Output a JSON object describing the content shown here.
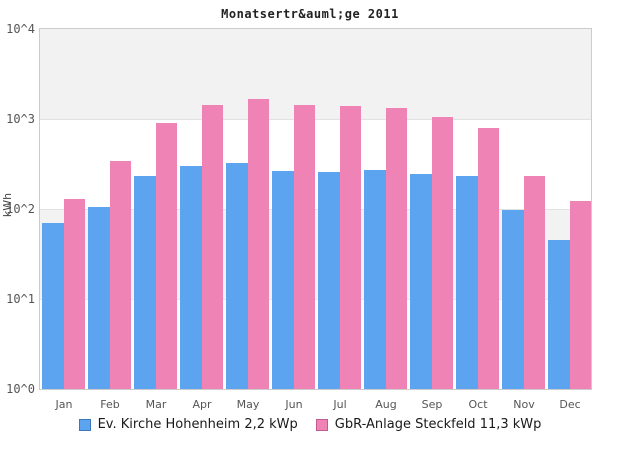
{
  "title": "Monatsertr&auml;ge 2011",
  "y_axis": {
    "label": "kWh",
    "ticks": [
      "10^4",
      "10^3",
      "10^2",
      "10^1",
      "10^0"
    ]
  },
  "colors": {
    "series1_fill": "#5ca4f0",
    "series1_border": "#3d77b8",
    "series2_fill": "#f083b6",
    "series2_border": "#c25a92",
    "band_gray": "#f2f2f2",
    "band_white": "#ffffff",
    "plot_border": "#cccccc"
  },
  "chart_data": {
    "type": "bar",
    "title": "Monatsertr&auml;ge 2011",
    "categories": [
      "Jan",
      "Feb",
      "Mar",
      "Apr",
      "May",
      "Jun",
      "Jul",
      "Aug",
      "Sep",
      "Oct",
      "Nov",
      "Dec"
    ],
    "series": [
      {
        "name": "Ev. Kirche Hohenheim 2,2 kWp",
        "color": "#5ca4f0",
        "values": [
          70,
          105,
          235,
          300,
          325,
          265,
          255,
          270,
          245,
          230,
          98,
          45
        ]
      },
      {
        "name": "GbR-Anlage Steckfeld 11,3 kWp",
        "color": "#f083b6",
        "values": [
          130,
          340,
          900,
          1430,
          1650,
          1430,
          1380,
          1320,
          1050,
          795,
          230,
          123
        ]
      }
    ],
    "xlabel": "",
    "ylabel": "kWh",
    "yscale": "log",
    "ylim": [
      1,
      10000
    ],
    "grid": "horizontal-decade-lines-with-alternating-bands",
    "legend_position": "bottom-center"
  }
}
